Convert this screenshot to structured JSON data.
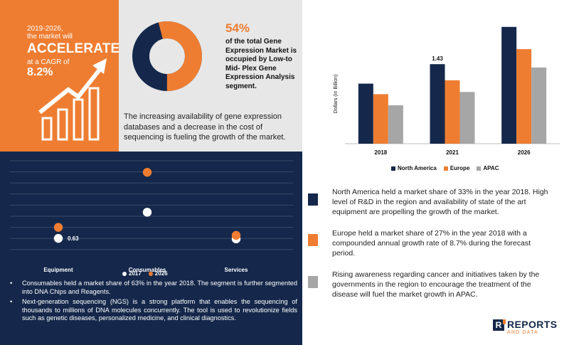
{
  "headline": {
    "line1": "2019-2026,",
    "line2": "the market will",
    "big": "ACCELERATE",
    "line3": "at a CAGR of",
    "cagr": "8.2%"
  },
  "donut": {
    "stat": "54%",
    "text": "of the total Gene Expression Market is occupied by Low-to Mid- Plex Gene Expression Analysis segment.",
    "share": 54,
    "colors": {
      "primary": "#ee7d31",
      "rest": "#15284b"
    }
  },
  "grey_para": "The increasing availability of gene expression databases and a decrease in the cost of sequencing is fueling the growth of the market.",
  "bullets": [
    "Consumables held a market share of 63% in the year 2018. The segment is further segmented into DNA Chips and Reagents.",
    "Next-generation sequencing (NGS) is a strong platform that enables the sequencing of thousands to millions of DNA molecules concurrently. The tool is used to revolutionize fields such as genetic diseases, personalized medicine, and clinical diagnostics."
  ],
  "notes": [
    {
      "text": "North America held a market share of 33% in the year 2018. High level of R&D in the region and availability of state of the art equipment are propelling the growth of the market.",
      "color": "#15284b"
    },
    {
      "text": "Europe held a market share of 27% in the year 2018 with a compounded annual growth rate of 8.7% during the forecast period.",
      "color": "#ee7d31"
    },
    {
      "text": "Rising awareness regarding cancer and initiatives taken by the governments in the region to encourage the treatment of the disease will fuel the market growth in APAC.",
      "color": "#a6a6a6"
    }
  ],
  "logo": {
    "word1": "REPORTS",
    "word2": "AND DATA",
    "letter": "R"
  },
  "chart_data": [
    {
      "type": "bar",
      "ylabel": "Dollars (In Billion)",
      "categories": [
        "2018",
        "2021",
        "2026"
      ],
      "series": [
        {
          "name": "North America",
          "color": "#15284b",
          "values": [
            1.08,
            1.43,
            2.1
          ]
        },
        {
          "name": "Europe",
          "color": "#ee7d31",
          "values": [
            0.89,
            1.14,
            1.7
          ]
        },
        {
          "name": "APAC",
          "color": "#a6a6a6",
          "values": [
            0.69,
            0.93,
            1.37
          ]
        }
      ],
      "data_labels": [
        {
          "series": "North America",
          "category": "2021",
          "text": "1.43"
        }
      ],
      "ylim": [
        0,
        2.2
      ],
      "legend": "bottom",
      "grid": false
    },
    {
      "type": "scatter",
      "categories": [
        "Equipment",
        "Consumables",
        "Services"
      ],
      "series": [
        {
          "name": "2017",
          "color": "#ffffff",
          "values": [
            0.63,
            2.1,
            0.6
          ]
        },
        {
          "name": "2026",
          "color": "#ee7d31",
          "values": [
            1.25,
            4.35,
            0.8
          ]
        }
      ],
      "data_labels": [
        {
          "series": "2017",
          "category": "Equipment",
          "text": "0.63"
        }
      ],
      "ylim": [
        0,
        5
      ],
      "legend": "bottom",
      "grid": true
    }
  ]
}
